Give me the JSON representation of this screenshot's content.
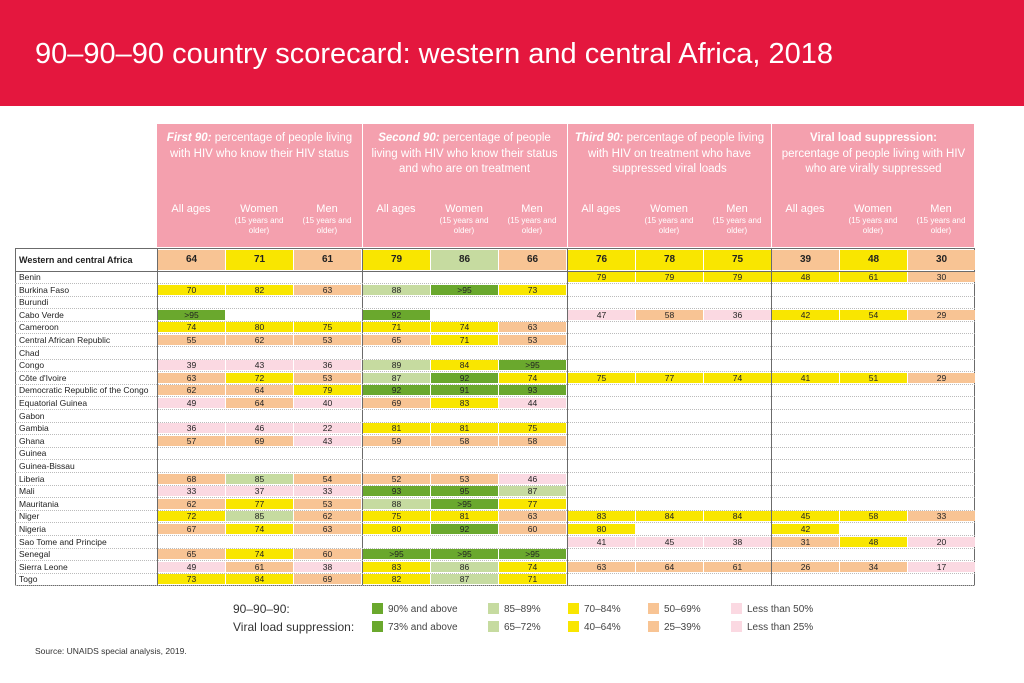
{
  "title": "90–90–90 country scorecard: western and central Africa, 2018",
  "colors": {
    "banner": "#e4173e",
    "header_bg": "#f4a0ae",
    "ge90": "#6aa82d",
    "c85_89": "#c6dba0",
    "c70_84": "#f9e600",
    "c50_69": "#f8c494",
    "lt50": "#fbd9e2",
    "empty": "#ffffff"
  },
  "headers": {
    "groups": [
      {
        "lead": "First 90:",
        "text": " percentage of people living with HIV who know their HIV status"
      },
      {
        "lead": "Second 90:",
        "text": "  percentage of people living with HIV who know their status and who are on treatment"
      },
      {
        "lead": "Third 90:",
        "text": " percentage of people living with HIV on treatment who have suppressed viral loads"
      },
      {
        "lead": "Viral load suppression:",
        "text": " percentage of people living with HIV who are virally suppressed"
      }
    ],
    "sub": {
      "all": "All ages",
      "women": "Women",
      "men": "Men",
      "note": "(15 years and older)"
    }
  },
  "region_label": "Western and central Africa",
  "rows": [
    {
      "name": "Western and central Africa",
      "values": [
        "64",
        "71",
        "61",
        "79",
        "86",
        "66",
        "76",
        "78",
        "75",
        "39",
        "48",
        "30"
      ],
      "colors": [
        "c50_69",
        "c70_84",
        "c50_69",
        "c70_84",
        "c85_89",
        "c50_69",
        "c70_84",
        "c70_84",
        "c70_84",
        "c25_39",
        "c40_64",
        "c25_39"
      ]
    },
    {
      "name": "Benin",
      "values": [
        "",
        "",
        "",
        "",
        "",
        "",
        "79",
        "79",
        "79",
        "48",
        "61",
        "30"
      ],
      "colors": [
        "",
        "",
        "",
        "",
        "",
        "",
        "c70_84",
        "c70_84",
        "c70_84",
        "c40_64",
        "c40_64",
        "c25_39"
      ]
    },
    {
      "name": "Burkina Faso",
      "values": [
        "70",
        "82",
        "63",
        "88",
        ">95",
        "73",
        "",
        "",
        "",
        "",
        "",
        ""
      ],
      "colors": [
        "c70_84",
        "c70_84",
        "c50_69",
        "c85_89",
        "ge90",
        "c70_84",
        "",
        "",
        "",
        "",
        "",
        ""
      ]
    },
    {
      "name": "Burundi",
      "values": [
        "",
        "",
        "",
        "",
        "",
        "",
        "",
        "",
        "",
        "",
        "",
        ""
      ],
      "colors": [
        "",
        "",
        "",
        "",
        "",
        "",
        "",
        "",
        "",
        "",
        "",
        ""
      ]
    },
    {
      "name": "Cabo Verde",
      "values": [
        ">95",
        "",
        "",
        "92",
        "",
        "",
        "47",
        "58",
        "36",
        "42",
        "54",
        "29"
      ],
      "colors": [
        "ge90",
        "",
        "",
        "ge90",
        "",
        "",
        "lt50",
        "c50_69",
        "lt50",
        "c40_64",
        "c40_64",
        "c25_39"
      ]
    },
    {
      "name": "Cameroon",
      "values": [
        "74",
        "80",
        "75",
        "71",
        "74",
        "63",
        "",
        "",
        "",
        "",
        "",
        ""
      ],
      "colors": [
        "c70_84",
        "c70_84",
        "c70_84",
        "c70_84",
        "c70_84",
        "c50_69",
        "",
        "",
        "",
        "",
        "",
        ""
      ]
    },
    {
      "name": "Central African Republic",
      "values": [
        "55",
        "62",
        "53",
        "65",
        "71",
        "53",
        "",
        "",
        "",
        "",
        "",
        ""
      ],
      "colors": [
        "c50_69",
        "c50_69",
        "c50_69",
        "c50_69",
        "c70_84",
        "c50_69",
        "",
        "",
        "",
        "",
        "",
        ""
      ]
    },
    {
      "name": "Chad",
      "values": [
        "",
        "",
        "",
        "",
        "",
        "",
        "",
        "",
        "",
        "",
        "",
        ""
      ],
      "colors": [
        "",
        "",
        "",
        "",
        "",
        "",
        "",
        "",
        "",
        "",
        "",
        ""
      ]
    },
    {
      "name": "Congo",
      "values": [
        "39",
        "43",
        "36",
        "89",
        "84",
        ">95",
        "",
        "",
        "",
        "",
        "",
        ""
      ],
      "colors": [
        "lt50",
        "lt50",
        "lt50",
        "c85_89",
        "c70_84",
        "ge90",
        "",
        "",
        "",
        "",
        "",
        ""
      ]
    },
    {
      "name": "Côte d'Ivoire",
      "values": [
        "63",
        "72",
        "53",
        "87",
        "92",
        "74",
        "75",
        "77",
        "74",
        "41",
        "51",
        "29"
      ],
      "colors": [
        "c50_69",
        "c70_84",
        "c50_69",
        "c85_89",
        "ge90",
        "c70_84",
        "c70_84",
        "c70_84",
        "c70_84",
        "c40_64",
        "c40_64",
        "c25_39"
      ]
    },
    {
      "name": "Democratic Republic of the Congo",
      "values": [
        "62",
        "64",
        "79",
        "92",
        "91",
        "93",
        "",
        "",
        "",
        "",
        "",
        ""
      ],
      "colors": [
        "c50_69",
        "c50_69",
        "c70_84",
        "ge90",
        "ge90",
        "ge90",
        "",
        "",
        "",
        "",
        "",
        ""
      ]
    },
    {
      "name": "Equatorial Guinea",
      "values": [
        "49",
        "64",
        "40",
        "69",
        "83",
        "44",
        "",
        "",
        "",
        "",
        "",
        ""
      ],
      "colors": [
        "lt50",
        "c50_69",
        "lt50",
        "c50_69",
        "c70_84",
        "lt50",
        "",
        "",
        "",
        "",
        "",
        ""
      ]
    },
    {
      "name": "Gabon",
      "values": [
        "",
        "",
        "",
        "",
        "",
        "",
        "",
        "",
        "",
        "",
        "",
        ""
      ],
      "colors": [
        "",
        "",
        "",
        "",
        "",
        "",
        "",
        "",
        "",
        "",
        "",
        ""
      ]
    },
    {
      "name": "Gambia",
      "values": [
        "36",
        "46",
        "22",
        "81",
        "81",
        "75",
        "",
        "",
        "",
        "",
        "",
        ""
      ],
      "colors": [
        "lt50",
        "lt50",
        "lt50",
        "c70_84",
        "c70_84",
        "c70_84",
        "",
        "",
        "",
        "",
        "",
        ""
      ]
    },
    {
      "name": "Ghana",
      "values": [
        "57",
        "69",
        "43",
        "59",
        "58",
        "58",
        "",
        "",
        "",
        "",
        "",
        ""
      ],
      "colors": [
        "c50_69",
        "c50_69",
        "lt50",
        "c50_69",
        "c50_69",
        "c50_69",
        "",
        "",
        "",
        "",
        "",
        ""
      ]
    },
    {
      "name": "Guinea",
      "values": [
        "",
        "",
        "",
        "",
        "",
        "",
        "",
        "",
        "",
        "",
        "",
        ""
      ],
      "colors": [
        "",
        "",
        "",
        "",
        "",
        "",
        "",
        "",
        "",
        "",
        "",
        ""
      ]
    },
    {
      "name": "Guinea-Bissau",
      "values": [
        "",
        "",
        "",
        "",
        "",
        "",
        "",
        "",
        "",
        "",
        "",
        ""
      ],
      "colors": [
        "",
        "",
        "",
        "",
        "",
        "",
        "",
        "",
        "",
        "",
        "",
        ""
      ]
    },
    {
      "name": "Liberia",
      "values": [
        "68",
        "85",
        "54",
        "52",
        "53",
        "46",
        "",
        "",
        "",
        "",
        "",
        ""
      ],
      "colors": [
        "c50_69",
        "c85_89",
        "c50_69",
        "c50_69",
        "c50_69",
        "lt50",
        "",
        "",
        "",
        "",
        "",
        ""
      ]
    },
    {
      "name": "Mali",
      "values": [
        "33",
        "37",
        "33",
        "93",
        "95",
        "87",
        "",
        "",
        "",
        "",
        "",
        ""
      ],
      "colors": [
        "lt50",
        "lt50",
        "lt50",
        "ge90",
        "ge90",
        "c85_89",
        "",
        "",
        "",
        "",
        "",
        ""
      ]
    },
    {
      "name": "Mauritania",
      "values": [
        "62",
        "77",
        "53",
        "88",
        ">95",
        "77",
        "",
        "",
        "",
        "",
        "",
        ""
      ],
      "colors": [
        "c50_69",
        "c70_84",
        "c50_69",
        "c85_89",
        "ge90",
        "c70_84",
        "",
        "",
        "",
        "",
        "",
        ""
      ]
    },
    {
      "name": "Niger",
      "values": [
        "72",
        "85",
        "62",
        "75",
        "81",
        "63",
        "83",
        "84",
        "84",
        "45",
        "58",
        "33"
      ],
      "colors": [
        "c70_84",
        "c85_89",
        "c50_69",
        "c70_84",
        "c70_84",
        "c50_69",
        "c70_84",
        "c70_84",
        "c70_84",
        "c40_64",
        "c40_64",
        "c25_39"
      ]
    },
    {
      "name": "Nigeria",
      "values": [
        "67",
        "74",
        "63",
        "80",
        "92",
        "60",
        "80",
        "",
        "",
        "42",
        "",
        ""
      ],
      "colors": [
        "c50_69",
        "c70_84",
        "c50_69",
        "c70_84",
        "ge90",
        "c50_69",
        "c70_84",
        "",
        "",
        "c40_64",
        "",
        ""
      ]
    },
    {
      "name": "Sao Tome and Principe",
      "values": [
        "",
        "",
        "",
        "",
        "",
        "",
        "41",
        "45",
        "38",
        "31",
        "48",
        "20"
      ],
      "colors": [
        "",
        "",
        "",
        "",
        "",
        "",
        "lt50",
        "lt50",
        "lt50",
        "c25_39",
        "c40_64",
        "lt25"
      ]
    },
    {
      "name": "Senegal",
      "values": [
        "65",
        "74",
        "60",
        ">95",
        ">95",
        ">95",
        "",
        "",
        "",
        "",
        "",
        ""
      ],
      "colors": [
        "c50_69",
        "c70_84",
        "c50_69",
        "ge90",
        "ge90",
        "ge90",
        "",
        "",
        "",
        "",
        "",
        ""
      ]
    },
    {
      "name": "Sierra Leone",
      "values": [
        "49",
        "61",
        "38",
        "83",
        "86",
        "74",
        "63",
        "64",
        "61",
        "26",
        "34",
        "17"
      ],
      "colors": [
        "lt50",
        "c50_69",
        "lt50",
        "c70_84",
        "c85_89",
        "c70_84",
        "c50_69",
        "c50_69",
        "c50_69",
        "c25_39",
        "c25_39",
        "lt25"
      ]
    },
    {
      "name": "Togo",
      "values": [
        "73",
        "84",
        "69",
        "82",
        "87",
        "71",
        "",
        "",
        "",
        "",
        "",
        ""
      ],
      "colors": [
        "c70_84",
        "c70_84",
        "c50_69",
        "c70_84",
        "c85_89",
        "c70_84",
        "",
        "",
        "",
        "",
        "",
        ""
      ]
    }
  ],
  "legend": {
    "title_90": "90–90–90:",
    "title_vls": "Viral load suppression:",
    "row1": [
      {
        "label": "90% and above",
        "color": "#6aa82d"
      },
      {
        "label": "85–89%",
        "color": "#c6dba0"
      },
      {
        "label": "70–84%",
        "color": "#f9e600"
      },
      {
        "label": "50–69%",
        "color": "#f8c494"
      },
      {
        "label": "Less than 50%",
        "color": "#fbd9e2"
      }
    ],
    "row2": [
      {
        "label": "73% and above",
        "color": "#6aa82d"
      },
      {
        "label": "65–72%",
        "color": "#c6dba0"
      },
      {
        "label": "40–64%",
        "color": "#f9e600"
      },
      {
        "label": "25–39%",
        "color": "#f8c494"
      },
      {
        "label": "Less than 25%",
        "color": "#fbd9e2"
      }
    ]
  },
  "source": "Source: UNAIDS special analysis, 2019."
}
